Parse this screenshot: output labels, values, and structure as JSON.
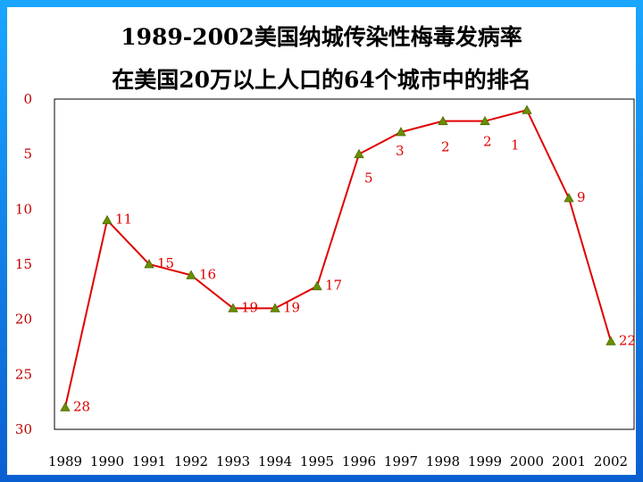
{
  "chart_data": {
    "type": "line",
    "title_line1": "1989-2002美国纳城传染性梅毒发病率",
    "title_line2": "在美国20万以上人口的64个城市中的排名",
    "xlabel": "",
    "ylabel": "",
    "categories": [
      "1989",
      "1990",
      "1991",
      "1992",
      "1993",
      "1994",
      "1995",
      "1996",
      "1997",
      "1998",
      "1999",
      "2000",
      "2001",
      "2002"
    ],
    "values": [
      28,
      11,
      15,
      16,
      19,
      19,
      17,
      5,
      3,
      2,
      2,
      1,
      9,
      22
    ],
    "data_labels": [
      "28",
      "11",
      "15",
      "16",
      "19",
      "19",
      "17",
      "5",
      "3",
      "2",
      "2",
      "1",
      "9",
      "22"
    ],
    "ylim": [
      0,
      30
    ],
    "y_inverted": true,
    "yticks": [
      "0",
      "5",
      "10",
      "15",
      "20",
      "25",
      "30"
    ],
    "grid": false,
    "line_color": "#e00000",
    "marker_color": "#6b8e00",
    "marker": "triangle"
  }
}
